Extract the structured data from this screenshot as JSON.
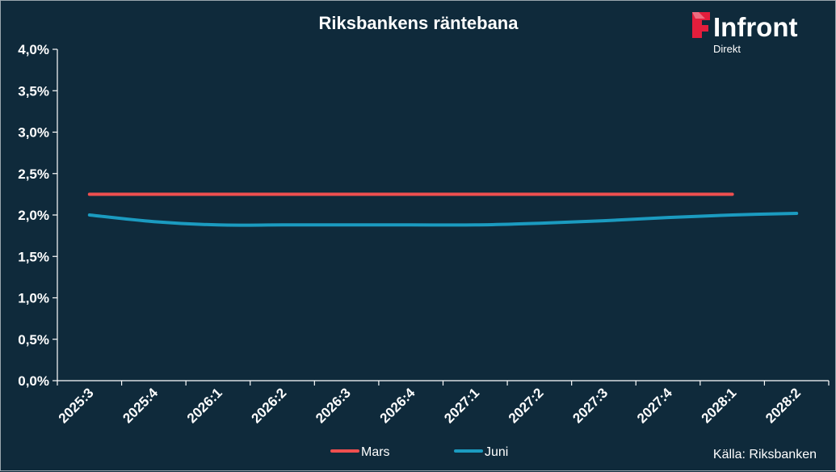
{
  "colors": {
    "background": "#0f2a3b",
    "axis": "#ffffff",
    "logo_red": "#e31e3c"
  },
  "logo": {
    "icon": "infront-flag-icon",
    "name": "Infront",
    "subtitle": "Direkt"
  },
  "source_text": "Källa:  Riksbanken",
  "chart_data": {
    "type": "line",
    "title": "Riksbankens räntebana",
    "xlabel": "",
    "ylabel": "",
    "categories": [
      "2025:3",
      "2025:4",
      "2026:1",
      "2026:2",
      "2026:3",
      "2026:4",
      "2027:1",
      "2027:2",
      "2027:3",
      "2027:4",
      "2028:1",
      "2028:2"
    ],
    "ylim": [
      0,
      4
    ],
    "y_ticks": [
      "0,0%",
      "0,5%",
      "1,0%",
      "1,5%",
      "2,0%",
      "2,5%",
      "3,0%",
      "3,5%",
      "4,0%"
    ],
    "grid": false,
    "legend_position": "bottom",
    "series": [
      {
        "name": "Mars",
        "color": "#ef4f4f",
        "values": [
          2.25,
          2.25,
          2.25,
          2.25,
          2.25,
          2.25,
          2.25,
          2.25,
          2.25,
          2.25,
          2.25,
          null
        ]
      },
      {
        "name": "Juni",
        "color": "#1b9bc0",
        "values": [
          2.0,
          1.92,
          1.88,
          1.88,
          1.88,
          1.88,
          1.88,
          1.9,
          1.93,
          1.97,
          2.0,
          2.02
        ]
      }
    ]
  }
}
